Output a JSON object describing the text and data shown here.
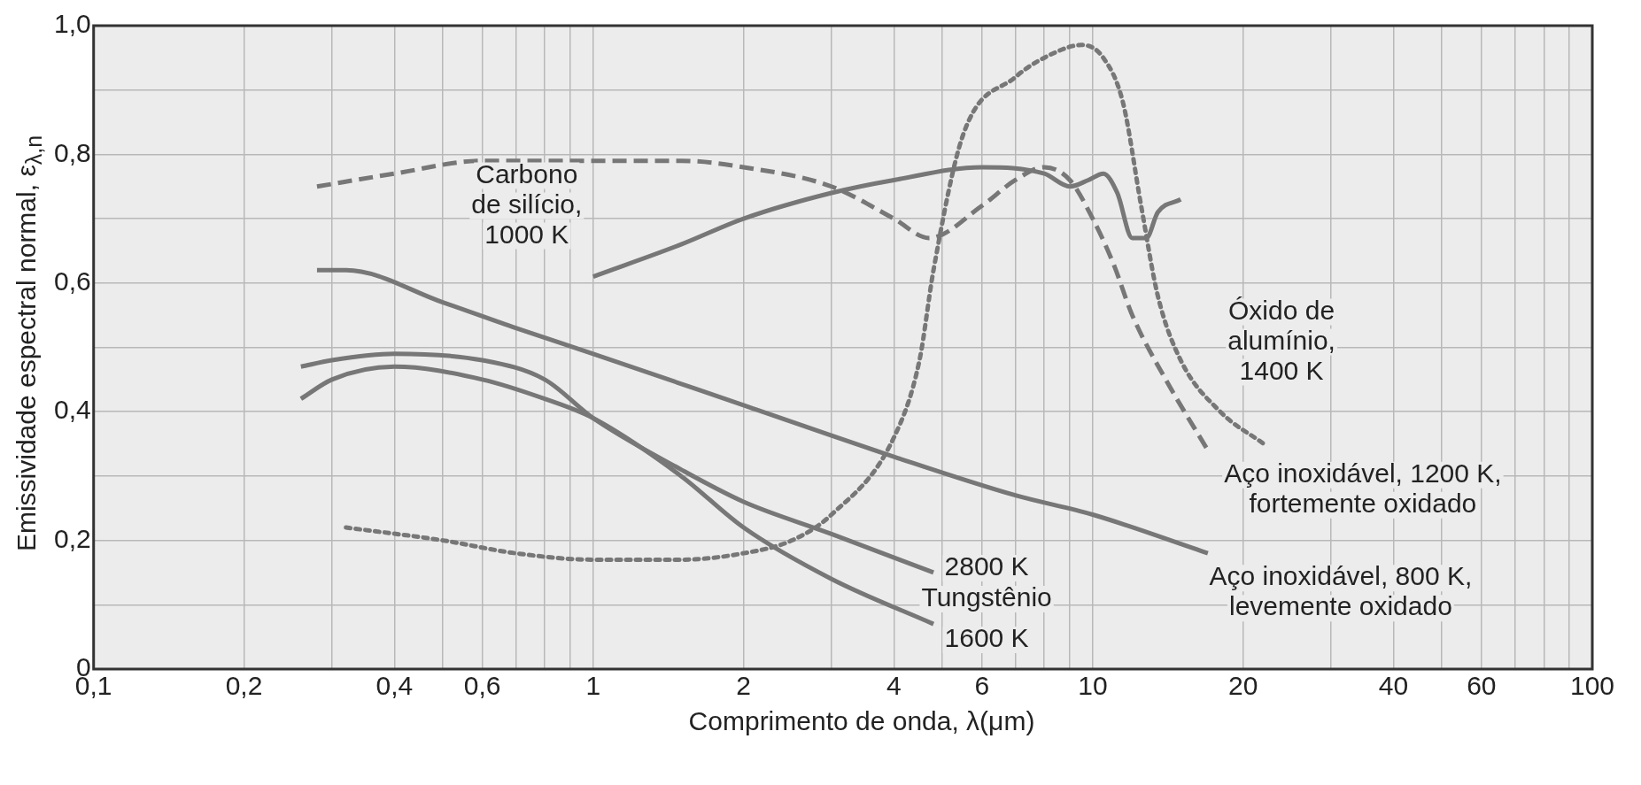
{
  "chart_data": {
    "type": "line",
    "xlabel": "Comprimento de onda, λ(μm)",
    "ylabel": "Emissividade espectral normal, ε$_{λ,n}$",
    "log": "x",
    "grid": true,
    "legend": false,
    "marker": "none",
    "xlim": [
      0.1,
      100
    ],
    "xticks": [
      {
        "value": 0.1,
        "label": "0,1"
      },
      {
        "value": 0.2,
        "label": "0,2"
      },
      {
        "value": 0.3,
        "label": null
      },
      {
        "value": 0.4,
        "label": "0,4"
      },
      {
        "value": 0.5,
        "label": null
      },
      {
        "value": 0.6,
        "label": "0,6"
      },
      {
        "value": 0.7,
        "label": null
      },
      {
        "value": 0.8,
        "label": null
      },
      {
        "value": 0.9,
        "label": null
      },
      1,
      2,
      {
        "value": 3,
        "label": null
      },
      4,
      {
        "value": 5,
        "label": null
      },
      6,
      {
        "value": 7,
        "label": null
      },
      {
        "value": 8,
        "label": null
      },
      {
        "value": 9,
        "label": null
      },
      10,
      20,
      {
        "value": 30,
        "label": null
      },
      40,
      {
        "value": 50,
        "label": null
      },
      60,
      {
        "value": 70,
        "label": null
      },
      {
        "value": 80,
        "label": null
      },
      {
        "value": 90,
        "label": null
      },
      100
    ],
    "ylim": [
      0,
      1
    ],
    "yticks": [
      0,
      {
        "value": 0.1,
        "label": null
      },
      {
        "value": 0.2,
        "label": "0,2"
      },
      {
        "value": 0.3,
        "label": null
      },
      {
        "value": 0.4,
        "label": "0,4"
      },
      {
        "value": 0.5,
        "label": null
      },
      {
        "value": 0.6,
        "label": "0,6"
      },
      {
        "value": 0.7,
        "label": null
      },
      {
        "value": 0.8,
        "label": "0,8"
      },
      {
        "value": 0.9,
        "label": null
      },
      {
        "value": 1,
        "label": "1,0"
      }
    ],
    "series": [
      {
        "type": "line",
        "name": "Carbono de silício, 1000 K",
        "color": "#777777",
        "line_style": "solid",
        "x": [
          1,
          1.5,
          2,
          3,
          4,
          6,
          8,
          9,
          9.8,
          10.5,
          11.2,
          12,
          12.8,
          13.5,
          15
        ],
        "values": [
          0.61,
          0.66,
          0.7,
          0.74,
          0.76,
          0.78,
          0.77,
          0.75,
          0.76,
          0.77,
          0.74,
          0.67,
          0.67,
          0.71,
          0.73
        ]
      },
      {
        "type": "line",
        "name": "Aço inoxidável, 1200 K, fortemente oxidado",
        "color": "#777777",
        "line_style": "dashed",
        "x": [
          0.28,
          0.4,
          0.6,
          1,
          1.5,
          2,
          3,
          4,
          4.7,
          6,
          7,
          8,
          9,
          10,
          11,
          12,
          14,
          17
        ],
        "values": [
          0.75,
          0.77,
          0.79,
          0.79,
          0.79,
          0.78,
          0.75,
          0.7,
          0.67,
          0.72,
          0.76,
          0.78,
          0.76,
          0.7,
          0.63,
          0.55,
          0.45,
          0.34
        ]
      },
      {
        "type": "line",
        "name": "Óxido de alumínio, 1400 K",
        "color": "#777777",
        "line_style": "dotted",
        "x": [
          0.32,
          0.5,
          0.7,
          1,
          1.5,
          2,
          2.5,
          3,
          4,
          4.5,
          4.8,
          5.5,
          7,
          8.5,
          9.5,
          10.5,
          11.5,
          12.5,
          13.5,
          15,
          18,
          22
        ],
        "values": [
          0.22,
          0.2,
          0.18,
          0.17,
          0.17,
          0.18,
          0.2,
          0.24,
          0.36,
          0.48,
          0.62,
          0.83,
          0.92,
          0.96,
          0.97,
          0.95,
          0.88,
          0.72,
          0.58,
          0.48,
          0.4,
          0.35
        ]
      },
      {
        "type": "line",
        "name": "Aço inoxidável, 800 K, levemente oxidado",
        "color": "#777777",
        "line_style": "solid",
        "x": [
          0.28,
          0.32,
          0.5,
          0.7,
          1,
          2,
          4,
          7,
          10,
          17
        ],
        "values": [
          0.62,
          0.62,
          0.57,
          0.53,
          0.49,
          0.41,
          0.33,
          0.27,
          0.24,
          0.18
        ]
      },
      {
        "type": "line",
        "name": "2800 K",
        "color": "#777777",
        "line_style": "solid",
        "x": [
          0.26,
          0.3,
          0.4,
          0.6,
          0.8,
          1,
          1.5,
          2,
          3,
          4.8
        ],
        "values": [
          0.47,
          0.48,
          0.49,
          0.48,
          0.45,
          0.39,
          0.31,
          0.26,
          0.21,
          0.15
        ]
      },
      {
        "type": "line",
        "name": "1600 K",
        "color": "#777777",
        "line_style": "solid",
        "x": [
          0.26,
          0.3,
          0.4,
          0.6,
          0.8,
          1,
          1.5,
          2,
          3,
          4.8
        ],
        "values": [
          0.42,
          0.45,
          0.47,
          0.45,
          0.42,
          0.39,
          0.3,
          0.22,
          0.14,
          0.07
        ]
      }
    ],
    "annotations": [
      "Tungstênio"
    ]
  }
}
